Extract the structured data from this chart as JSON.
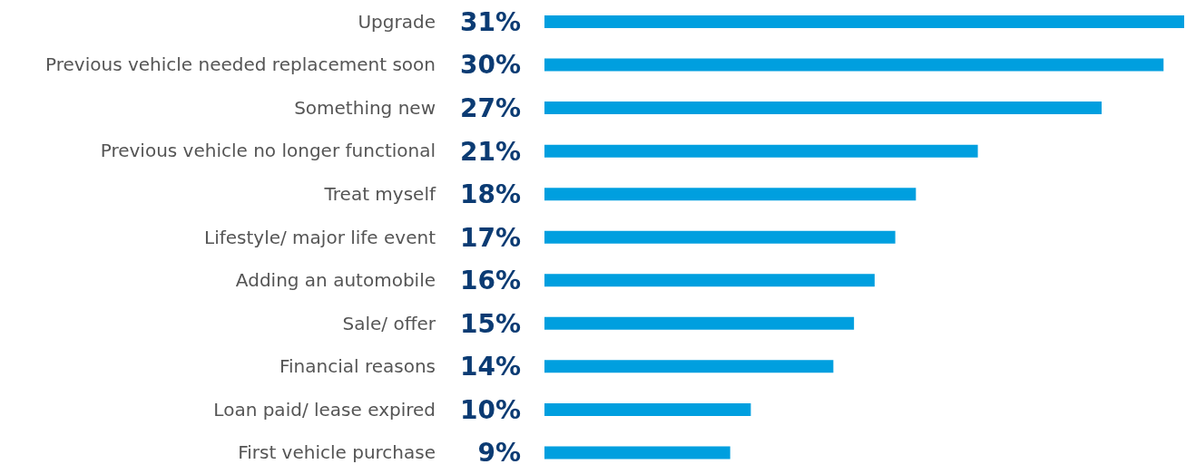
{
  "chart_data": {
    "type": "bar",
    "orientation": "horizontal",
    "categories": [
      "Upgrade",
      "Previous vehicle needed replacement soon",
      "Something new",
      "Previous vehicle no longer functional",
      "Treat myself",
      "Lifestyle/ major life event",
      "Adding an automobile",
      "Sale/ offer",
      "Financial reasons",
      "Loan paid/ lease expired",
      "First vehicle purchase"
    ],
    "values": [
      31,
      30,
      27,
      21,
      18,
      17,
      16,
      15,
      14,
      10,
      9
    ],
    "value_labels": [
      "31%",
      "30%",
      "27%",
      "21%",
      "18%",
      "17%",
      "16%",
      "15%",
      "14%",
      "10%",
      "9%"
    ],
    "color": "#009fdf",
    "grid": false,
    "legend": false
  }
}
